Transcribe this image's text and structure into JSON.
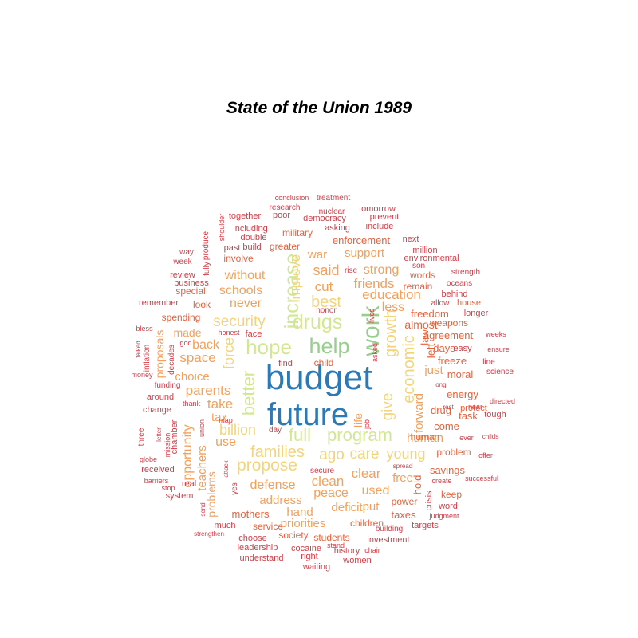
{
  "title": "State of the Union 1989",
  "colors": {
    "blue": "#2b7ab7",
    "green": "#99cf8e",
    "lime": "#d2e795",
    "yellow": "#f3d47d",
    "orange": "#f4a05c",
    "dark_orange": "#e6623e",
    "red": "#d53b46"
  },
  "words": [
    {
      "text": "budget",
      "color": "blue"
    },
    {
      "text": "future",
      "color": "blue"
    },
    {
      "text": "work",
      "color": "green"
    },
    {
      "text": "help",
      "color": "green"
    },
    {
      "text": "drugs",
      "color": "lime"
    },
    {
      "text": "hope",
      "color": "lime"
    },
    {
      "text": "increase",
      "color": "lime"
    },
    {
      "text": "program",
      "color": "lime"
    },
    {
      "text": "full",
      "color": "lime"
    },
    {
      "text": "better",
      "color": "lime"
    },
    {
      "text": "growth",
      "color": "yellow"
    },
    {
      "text": "give",
      "color": "yellow"
    },
    {
      "text": "economic",
      "color": "yellow"
    },
    {
      "text": "best",
      "color": "yellow"
    },
    {
      "text": "security",
      "color": "yellow"
    },
    {
      "text": "propose",
      "color": "yellow"
    },
    {
      "text": "families",
      "color": "yellow"
    },
    {
      "text": "care",
      "color": "yellow"
    },
    {
      "text": "ago",
      "color": "yellow"
    },
    {
      "text": "young",
      "color": "yellow"
    },
    {
      "text": "billion",
      "color": "yellow"
    },
    {
      "text": "force",
      "color": "yellow"
    },
    {
      "text": "improve",
      "color": "yellow"
    },
    {
      "text": "said",
      "color": "orange"
    },
    {
      "text": "cut",
      "color": "orange"
    },
    {
      "text": "education",
      "color": "orange"
    },
    {
      "text": "friends",
      "color": "orange"
    },
    {
      "text": "strong",
      "color": "orange"
    },
    {
      "text": "schools",
      "color": "orange"
    },
    {
      "text": "never",
      "color": "orange"
    },
    {
      "text": "without",
      "color": "orange"
    },
    {
      "text": "space",
      "color": "orange"
    },
    {
      "text": "back",
      "color": "orange"
    },
    {
      "text": "parents",
      "color": "orange"
    },
    {
      "text": "take",
      "color": "orange"
    },
    {
      "text": "choice",
      "color": "orange"
    },
    {
      "text": "tax",
      "color": "orange"
    },
    {
      "text": "use",
      "color": "orange"
    },
    {
      "text": "opportunity",
      "color": "orange"
    },
    {
      "text": "defense",
      "color": "orange"
    },
    {
      "text": "clean",
      "color": "orange"
    },
    {
      "text": "clear",
      "color": "orange"
    },
    {
      "text": "peace",
      "color": "orange"
    },
    {
      "text": "used",
      "color": "orange"
    },
    {
      "text": "address",
      "color": "orange"
    },
    {
      "text": "deficit",
      "color": "orange"
    },
    {
      "text": "put",
      "color": "orange"
    },
    {
      "text": "hand",
      "color": "orange"
    },
    {
      "text": "priorities",
      "color": "orange"
    },
    {
      "text": "human",
      "color": "orange"
    },
    {
      "text": "forward",
      "color": "orange"
    },
    {
      "text": "less",
      "color": "orange"
    },
    {
      "text": "support",
      "color": "orange"
    },
    {
      "text": "war",
      "color": "orange"
    },
    {
      "text": "proposals",
      "color": "orange"
    },
    {
      "text": "just",
      "color": "orange"
    },
    {
      "text": "free",
      "color": "orange"
    },
    {
      "text": "made",
      "color": "orange"
    },
    {
      "text": "life",
      "color": "orange"
    },
    {
      "text": "teachers",
      "color": "orange"
    },
    {
      "text": "problems",
      "color": "orange"
    },
    {
      "text": "almost",
      "color": "dark_orange"
    },
    {
      "text": "freedom",
      "color": "dark_orange"
    },
    {
      "text": "agreement",
      "color": "dark_orange"
    },
    {
      "text": "left",
      "color": "dark_orange"
    },
    {
      "text": "law",
      "color": "dark_orange"
    },
    {
      "text": "days",
      "color": "dark_orange"
    },
    {
      "text": "freeze",
      "color": "dark_orange"
    },
    {
      "text": "moral",
      "color": "dark_orange"
    },
    {
      "text": "energy",
      "color": "dark_orange"
    },
    {
      "text": "task",
      "color": "dark_orange"
    },
    {
      "text": "drug",
      "color": "dark_orange"
    },
    {
      "text": "come",
      "color": "dark_orange"
    },
    {
      "text": "problem",
      "color": "dark_orange"
    },
    {
      "text": "savings",
      "color": "dark_orange"
    },
    {
      "text": "hold",
      "color": "dark_orange"
    },
    {
      "text": "keep",
      "color": "dark_orange"
    },
    {
      "text": "power",
      "color": "dark_orange"
    },
    {
      "text": "taxes",
      "color": "dark_orange"
    },
    {
      "text": "mothers",
      "color": "dark_orange"
    },
    {
      "text": "service",
      "color": "dark_orange"
    },
    {
      "text": "society",
      "color": "dark_orange"
    },
    {
      "text": "students",
      "color": "dark_orange"
    },
    {
      "text": "children",
      "color": "dark_orange"
    },
    {
      "text": "words",
      "color": "dark_orange"
    },
    {
      "text": "remain",
      "color": "dark_orange"
    },
    {
      "text": "enforcement",
      "color": "dark_orange"
    },
    {
      "text": "military",
      "color": "dark_orange"
    },
    {
      "text": "greater",
      "color": "dark_orange"
    },
    {
      "text": "involve",
      "color": "dark_orange"
    },
    {
      "text": "special",
      "color": "dark_orange"
    },
    {
      "text": "spending",
      "color": "dark_orange"
    },
    {
      "text": "look",
      "color": "dark_orange"
    },
    {
      "text": "child",
      "color": "dark_orange"
    },
    {
      "text": "weapons",
      "color": "dark_orange"
    },
    {
      "text": "house",
      "color": "dark_orange"
    },
    {
      "text": "protect",
      "color": "dark_orange"
    },
    {
      "text": "human",
      "color": "dark_orange"
    },
    {
      "text": "conclusion",
      "color": "red"
    },
    {
      "text": "treatment",
      "color": "red"
    },
    {
      "text": "research",
      "color": "red"
    },
    {
      "text": "nuclear",
      "color": "red"
    },
    {
      "text": "tomorrow",
      "color": "red"
    },
    {
      "text": "together",
      "color": "red"
    },
    {
      "text": "poor",
      "color": "red"
    },
    {
      "text": "democracy",
      "color": "red"
    },
    {
      "text": "prevent",
      "color": "red"
    },
    {
      "text": "shoulder",
      "color": "red"
    },
    {
      "text": "including",
      "color": "red"
    },
    {
      "text": "asking",
      "color": "red"
    },
    {
      "text": "include",
      "color": "red"
    },
    {
      "text": "produce",
      "color": "red"
    },
    {
      "text": "double",
      "color": "red"
    },
    {
      "text": "past",
      "color": "red"
    },
    {
      "text": "build",
      "color": "red"
    },
    {
      "text": "next",
      "color": "red"
    },
    {
      "text": "million",
      "color": "red"
    },
    {
      "text": "way",
      "color": "red"
    },
    {
      "text": "week",
      "color": "red"
    },
    {
      "text": "fully",
      "color": "red"
    },
    {
      "text": "environmental",
      "color": "red"
    },
    {
      "text": "son",
      "color": "red"
    },
    {
      "text": "rise",
      "color": "red"
    },
    {
      "text": "strength",
      "color": "red"
    },
    {
      "text": "review",
      "color": "red"
    },
    {
      "text": "business",
      "color": "red"
    },
    {
      "text": "oceans",
      "color": "red"
    },
    {
      "text": "behind",
      "color": "red"
    },
    {
      "text": "remember",
      "color": "red"
    },
    {
      "text": "honor",
      "color": "red"
    },
    {
      "text": "allow",
      "color": "red"
    },
    {
      "text": "lives",
      "color": "red"
    },
    {
      "text": "longer",
      "color": "red"
    },
    {
      "text": "bless",
      "color": "red"
    },
    {
      "text": "honest",
      "color": "red"
    },
    {
      "text": "face",
      "color": "red"
    },
    {
      "text": "weeks",
      "color": "red"
    },
    {
      "text": "god",
      "color": "red"
    },
    {
      "text": "asked",
      "color": "red"
    },
    {
      "text": "easy",
      "color": "red"
    },
    {
      "text": "ensure",
      "color": "red"
    },
    {
      "text": "talked",
      "color": "red"
    },
    {
      "text": "inflation",
      "color": "red"
    },
    {
      "text": "decades",
      "color": "red"
    },
    {
      "text": "find",
      "color": "red"
    },
    {
      "text": "line",
      "color": "red"
    },
    {
      "text": "money",
      "color": "red"
    },
    {
      "text": "science",
      "color": "red"
    },
    {
      "text": "funding",
      "color": "red"
    },
    {
      "text": "long",
      "color": "red"
    },
    {
      "text": "thank",
      "color": "red"
    },
    {
      "text": "around",
      "color": "red"
    },
    {
      "text": "directed",
      "color": "red"
    },
    {
      "text": "rest",
      "color": "red"
    },
    {
      "text": "near",
      "color": "red"
    },
    {
      "text": "tough",
      "color": "red"
    },
    {
      "text": "change",
      "color": "red"
    },
    {
      "text": "job",
      "color": "red"
    },
    {
      "text": "letter",
      "color": "red"
    },
    {
      "text": "union",
      "color": "red"
    },
    {
      "text": "day",
      "color": "red"
    },
    {
      "text": "three",
      "color": "red"
    },
    {
      "text": "mission",
      "color": "red"
    },
    {
      "text": "chamber",
      "color": "red"
    },
    {
      "text": "ever",
      "color": "red"
    },
    {
      "text": "childs",
      "color": "red"
    },
    {
      "text": "offer",
      "color": "red"
    },
    {
      "text": "globe",
      "color": "red"
    },
    {
      "text": "received",
      "color": "red"
    },
    {
      "text": "attack",
      "color": "red"
    },
    {
      "text": "secure",
      "color": "red"
    },
    {
      "text": "spread",
      "color": "red"
    },
    {
      "text": "barriers",
      "color": "red"
    },
    {
      "text": "create",
      "color": "red"
    },
    {
      "text": "successful",
      "color": "red"
    },
    {
      "text": "stop",
      "color": "red"
    },
    {
      "text": "real",
      "color": "red"
    },
    {
      "text": "yes",
      "color": "red"
    },
    {
      "text": "system",
      "color": "red"
    },
    {
      "text": "send",
      "color": "red"
    },
    {
      "text": "crisis",
      "color": "red"
    },
    {
      "text": "word",
      "color": "red"
    },
    {
      "text": "judgment",
      "color": "red"
    },
    {
      "text": "much",
      "color": "red"
    },
    {
      "text": "targets",
      "color": "red"
    },
    {
      "text": "building",
      "color": "red"
    },
    {
      "text": "strengthen",
      "color": "red"
    },
    {
      "text": "choose",
      "color": "red"
    },
    {
      "text": "investment",
      "color": "red"
    },
    {
      "text": "leadership",
      "color": "red"
    },
    {
      "text": "cocaine",
      "color": "red"
    },
    {
      "text": "stand",
      "color": "red"
    },
    {
      "text": "history",
      "color": "red"
    },
    {
      "text": "chair",
      "color": "red"
    },
    {
      "text": "understand",
      "color": "red"
    },
    {
      "text": "right",
      "color": "red"
    },
    {
      "text": "women",
      "color": "red"
    },
    {
      "text": "waiting",
      "color": "red"
    },
    {
      "text": "map",
      "color": "red"
    }
  ]
}
